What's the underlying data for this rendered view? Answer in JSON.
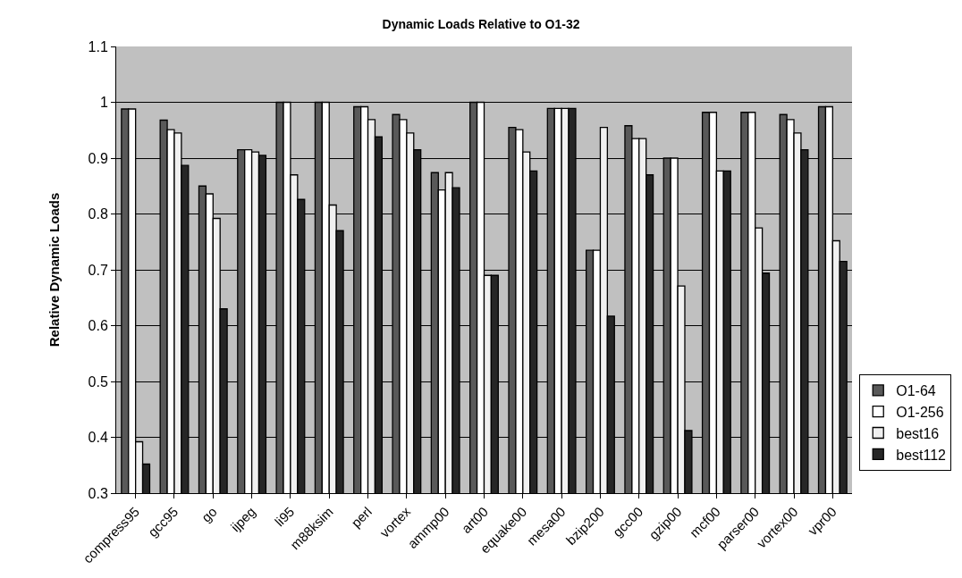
{
  "chart_data": {
    "type": "bar",
    "title": "Dynamic Loads Relative to O1-32",
    "ylabel": "Relative Dynamic Loads",
    "categories": [
      "compress95",
      "gcc95",
      "go",
      "ijpeg",
      "li95",
      "m88ksim",
      "perl",
      "vortex",
      "ammp00",
      "art00",
      "equake00",
      "mesa00",
      "bzip200",
      "gcc00",
      "gzip00",
      "mcf00",
      "parser00",
      "vortex00",
      "vpr00"
    ],
    "series": [
      {
        "name": "O1-64",
        "color": "#595959",
        "values": [
          0.988,
          0.968,
          0.85,
          0.915,
          1,
          1,
          0.992,
          0.978,
          0.874,
          1,
          0.955,
          0.989,
          0.735,
          0.958,
          0.9,
          0.982,
          0.982,
          0.978,
          0.992
        ]
      },
      {
        "name": "O1-256",
        "color": "#ffffff",
        "values": [
          0.988,
          0.951,
          0.836,
          0.915,
          1,
          1,
          0.992,
          0.969,
          0.843,
          1,
          0.951,
          0.989,
          0.735,
          0.935,
          0.9,
          0.982,
          0.982,
          0.969,
          0.992
        ]
      },
      {
        "name": "best16",
        "color": "#f0f0f0",
        "values": [
          0.392,
          0.945,
          0.792,
          0.911,
          0.87,
          0.816,
          0.969,
          0.945,
          0.874,
          0.69,
          0.911,
          0.989,
          0.955,
          0.935,
          0.671,
          0.877,
          0.775,
          0.945,
          0.752
        ]
      },
      {
        "name": "best112",
        "color": "#262626",
        "values": [
          0.352,
          0.887,
          0.63,
          0.905,
          0.826,
          0.77,
          0.938,
          0.915,
          0.847,
          0.69,
          0.877,
          0.989,
          0.617,
          0.87,
          0.412,
          0.877,
          0.694,
          0.915,
          0.715
        ]
      }
    ],
    "ylim": [
      0.3,
      1.1
    ],
    "yticks": [
      0.3,
      0.4,
      0.5,
      0.6,
      0.7,
      0.8,
      0.9,
      1,
      1.1
    ],
    "grid": "y",
    "legend": "right"
  }
}
